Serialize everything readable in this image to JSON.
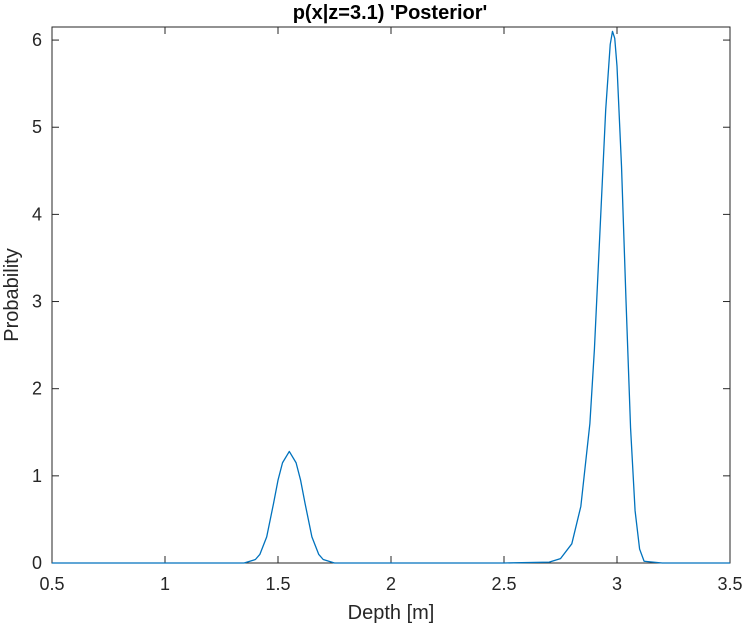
{
  "chart_data": {
    "type": "line",
    "title": "p(x|z=3.1) 'Posterior'",
    "xlabel": "Depth [m]",
    "ylabel": "Probability",
    "xlim": [
      0.5,
      3.5
    ],
    "ylim": [
      0,
      6.15
    ],
    "xticks": [
      0.5,
      1,
      1.5,
      2,
      2.5,
      3,
      3.5
    ],
    "xtick_labels": [
      "0.5",
      "1",
      "1.5",
      "2",
      "2.5",
      "3",
      "3.5"
    ],
    "yticks": [
      0,
      1,
      2,
      3,
      4,
      5,
      6
    ],
    "ytick_labels": [
      "0",
      "1",
      "2",
      "3",
      "4",
      "5",
      "6"
    ],
    "grid": false,
    "legend": "none",
    "colors": {
      "line": "#0072BD",
      "axes": "#262626",
      "background": "#ffffff"
    },
    "series": [
      {
        "x": [
          0.5,
          1.0,
          1.35,
          1.4,
          1.42,
          1.45,
          1.48,
          1.5,
          1.52,
          1.55,
          1.58,
          1.6,
          1.62,
          1.65,
          1.68,
          1.7,
          1.75,
          2.0,
          2.5,
          2.7,
          2.75,
          2.8,
          2.84,
          2.88,
          2.9,
          2.92,
          2.95,
          2.97,
          2.98,
          2.99,
          3.0,
          3.02,
          3.04,
          3.06,
          3.08,
          3.1,
          3.12,
          3.2,
          3.5
        ],
        "y": [
          0,
          0,
          0,
          0.04,
          0.1,
          0.3,
          0.68,
          0.95,
          1.15,
          1.28,
          1.15,
          0.95,
          0.68,
          0.3,
          0.1,
          0.04,
          0,
          0,
          0,
          0.01,
          0.05,
          0.22,
          0.65,
          1.6,
          2.45,
          3.55,
          5.2,
          5.95,
          6.1,
          6.02,
          5.7,
          4.55,
          3.0,
          1.55,
          0.6,
          0.16,
          0.02,
          0,
          0
        ]
      }
    ]
  }
}
